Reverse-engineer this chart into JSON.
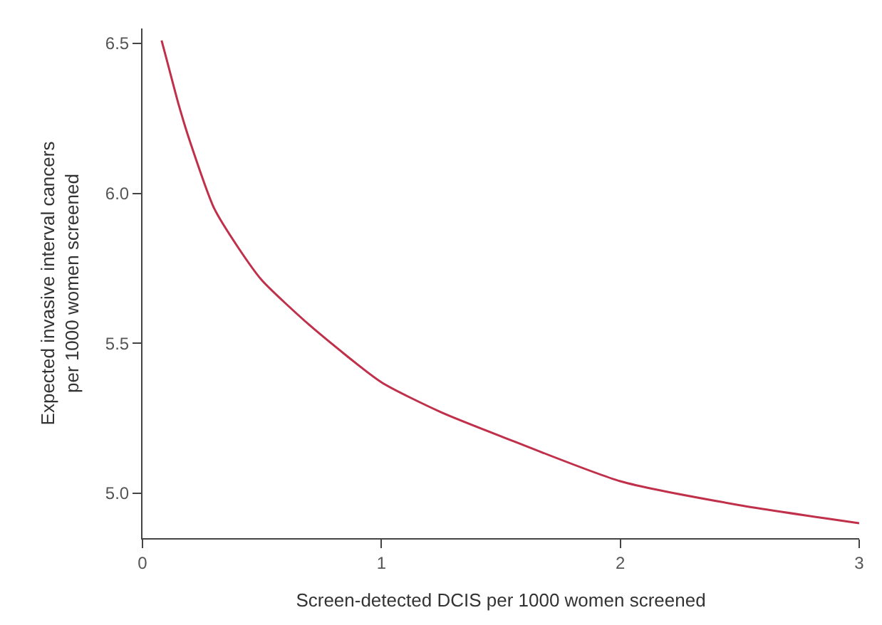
{
  "chart_data": {
    "type": "line",
    "xlabel": "Screen-detected DCIS per 1000 women screened",
    "ylabel": "Expected invasive interval cancers\nper 1000 women screened",
    "x": [
      0.08,
      0.1,
      0.15,
      0.2,
      0.3,
      0.4,
      0.5,
      0.7,
      1.0,
      1.25,
      1.5,
      2.0,
      2.5,
      3.0
    ],
    "series": [
      {
        "color": "#c0304a",
        "values": [
          6.51,
          6.45,
          6.3,
          6.17,
          5.95,
          5.82,
          5.71,
          5.56,
          5.37,
          5.27,
          5.19,
          5.04,
          4.96,
          4.9
        ]
      }
    ],
    "xlim": [
      0,
      3
    ],
    "ylim": [
      4.85,
      6.55
    ],
    "xticks": [
      0,
      1,
      2,
      3
    ],
    "yticks": [
      {
        "value": 5.0,
        "label": "5.0"
      },
      {
        "value": 5.5,
        "label": "5.5"
      },
      {
        "value": 6.0,
        "label": "6.0"
      },
      {
        "value": 6.5,
        "label": "6.5"
      }
    ],
    "legend": false,
    "marker": "none",
    "line_style": "solid"
  }
}
